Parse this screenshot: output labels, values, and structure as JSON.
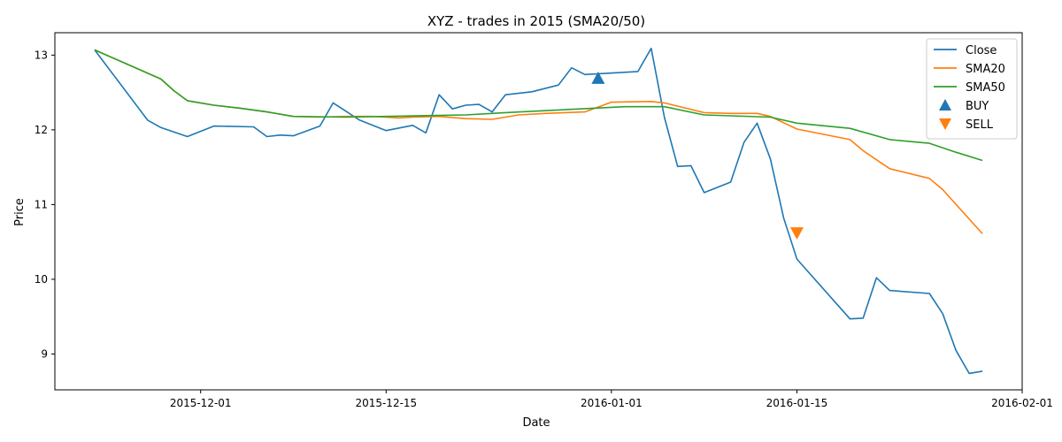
{
  "chart_data": {
    "type": "line",
    "title": "XYZ - trades in 2015 (SMA20/50)",
    "xlabel": "Date",
    "ylabel": "Price",
    "xlim": [
      "2015-11-20",
      "2016-02-01"
    ],
    "ylim": [
      8.52,
      13.3
    ],
    "x_ticks": [
      "2015-12-01",
      "2015-12-15",
      "2016-01-01",
      "2016-01-15",
      "2016-02-01"
    ],
    "y_ticks": [
      9,
      10,
      11,
      12,
      13
    ],
    "legend": {
      "position": "top-right",
      "entries": [
        "Close",
        "SMA20",
        "SMA50",
        "BUY",
        "SELL"
      ]
    },
    "colors": {
      "close": "#1f77b4",
      "sma20": "#ff7f0e",
      "sma50": "#2ca02c",
      "buy": "#1f77b4",
      "sell": "#ff7f0e"
    },
    "series": [
      {
        "name": "Close",
        "x": [
          "2015-11-23",
          "2015-11-27",
          "2015-11-28",
          "2015-11-30",
          "2015-12-02",
          "2015-12-05",
          "2015-12-06",
          "2015-12-07",
          "2015-12-08",
          "2015-12-10",
          "2015-12-11",
          "2015-12-13",
          "2015-12-15",
          "2015-12-17",
          "2015-12-18",
          "2015-12-19",
          "2015-12-20",
          "2015-12-21",
          "2015-12-22",
          "2015-12-23",
          "2015-12-24",
          "2015-12-26",
          "2015-12-28",
          "2015-12-29",
          "2015-12-30",
          "2016-01-03",
          "2016-01-04",
          "2016-01-05",
          "2016-01-06",
          "2016-01-07",
          "2016-01-08",
          "2016-01-10",
          "2016-01-11",
          "2016-01-12",
          "2016-01-13",
          "2016-01-14",
          "2016-01-15",
          "2016-01-19",
          "2016-01-20",
          "2016-01-21",
          "2016-01-22",
          "2016-01-25",
          "2016-01-26",
          "2016-01-27",
          "2016-01-28",
          "2016-01-29"
        ],
        "y": [
          13.07,
          12.13,
          12.03,
          11.91,
          12.05,
          12.04,
          11.91,
          11.93,
          11.92,
          12.05,
          12.36,
          12.13,
          11.99,
          12.06,
          11.96,
          12.47,
          12.28,
          12.33,
          12.34,
          12.24,
          12.47,
          12.51,
          12.6,
          12.83,
          12.74,
          12.78,
          13.09,
          12.17,
          11.51,
          11.52,
          11.16,
          11.3,
          11.83,
          12.09,
          11.61,
          10.82,
          10.27,
          9.47,
          9.48,
          10.02,
          9.85,
          9.81,
          9.54,
          9.05,
          8.74,
          8.77
        ]
      },
      {
        "name": "SMA20",
        "x": [
          "2015-11-23",
          "2015-11-28",
          "2015-11-29",
          "2015-11-30",
          "2015-12-02",
          "2015-12-04",
          "2015-12-06",
          "2015-12-08",
          "2015-12-10",
          "2015-12-12",
          "2015-12-14",
          "2015-12-16",
          "2015-12-17",
          "2015-12-19",
          "2015-12-21",
          "2015-12-23",
          "2015-12-25",
          "2015-12-27",
          "2015-12-30",
          "2016-01-01",
          "2016-01-04",
          "2016-01-05",
          "2016-01-08",
          "2016-01-10",
          "2016-01-12",
          "2016-01-13",
          "2016-01-15",
          "2016-01-19",
          "2016-01-20",
          "2016-01-21",
          "2016-01-22",
          "2016-01-25",
          "2016-01-26",
          "2016-01-29"
        ],
        "y": [
          13.07,
          12.68,
          12.52,
          12.39,
          12.33,
          12.29,
          12.24,
          12.18,
          12.17,
          12.18,
          12.18,
          12.16,
          12.17,
          12.18,
          12.15,
          12.14,
          12.2,
          12.22,
          12.24,
          12.37,
          12.38,
          12.36,
          12.23,
          12.22,
          12.22,
          12.18,
          12.01,
          11.87,
          11.72,
          11.6,
          11.48,
          11.35,
          11.2,
          10.61
        ]
      },
      {
        "name": "SMA50",
        "x": [
          "2015-11-23",
          "2015-11-28",
          "2015-11-29",
          "2015-11-30",
          "2015-12-02",
          "2015-12-04",
          "2015-12-06",
          "2015-12-08",
          "2015-12-12",
          "2015-12-15",
          "2015-12-18",
          "2015-12-21",
          "2015-12-24",
          "2016-01-02",
          "2016-01-05",
          "2016-01-08",
          "2016-01-13",
          "2016-01-15",
          "2016-01-19",
          "2016-01-22",
          "2016-01-25",
          "2016-01-27",
          "2016-01-29"
        ],
        "y": [
          13.07,
          12.68,
          12.52,
          12.39,
          12.33,
          12.29,
          12.24,
          12.18,
          12.17,
          12.18,
          12.19,
          12.2,
          12.23,
          12.31,
          12.31,
          12.2,
          12.17,
          12.09,
          12.02,
          11.87,
          11.82,
          11.7,
          11.59
        ]
      }
    ],
    "markers": [
      {
        "name": "BUY",
        "x": "2015-12-31",
        "y": 12.69,
        "shape": "triangle-up"
      },
      {
        "name": "SELL",
        "x": "2016-01-15",
        "y": 10.62,
        "shape": "triangle-down"
      }
    ]
  }
}
